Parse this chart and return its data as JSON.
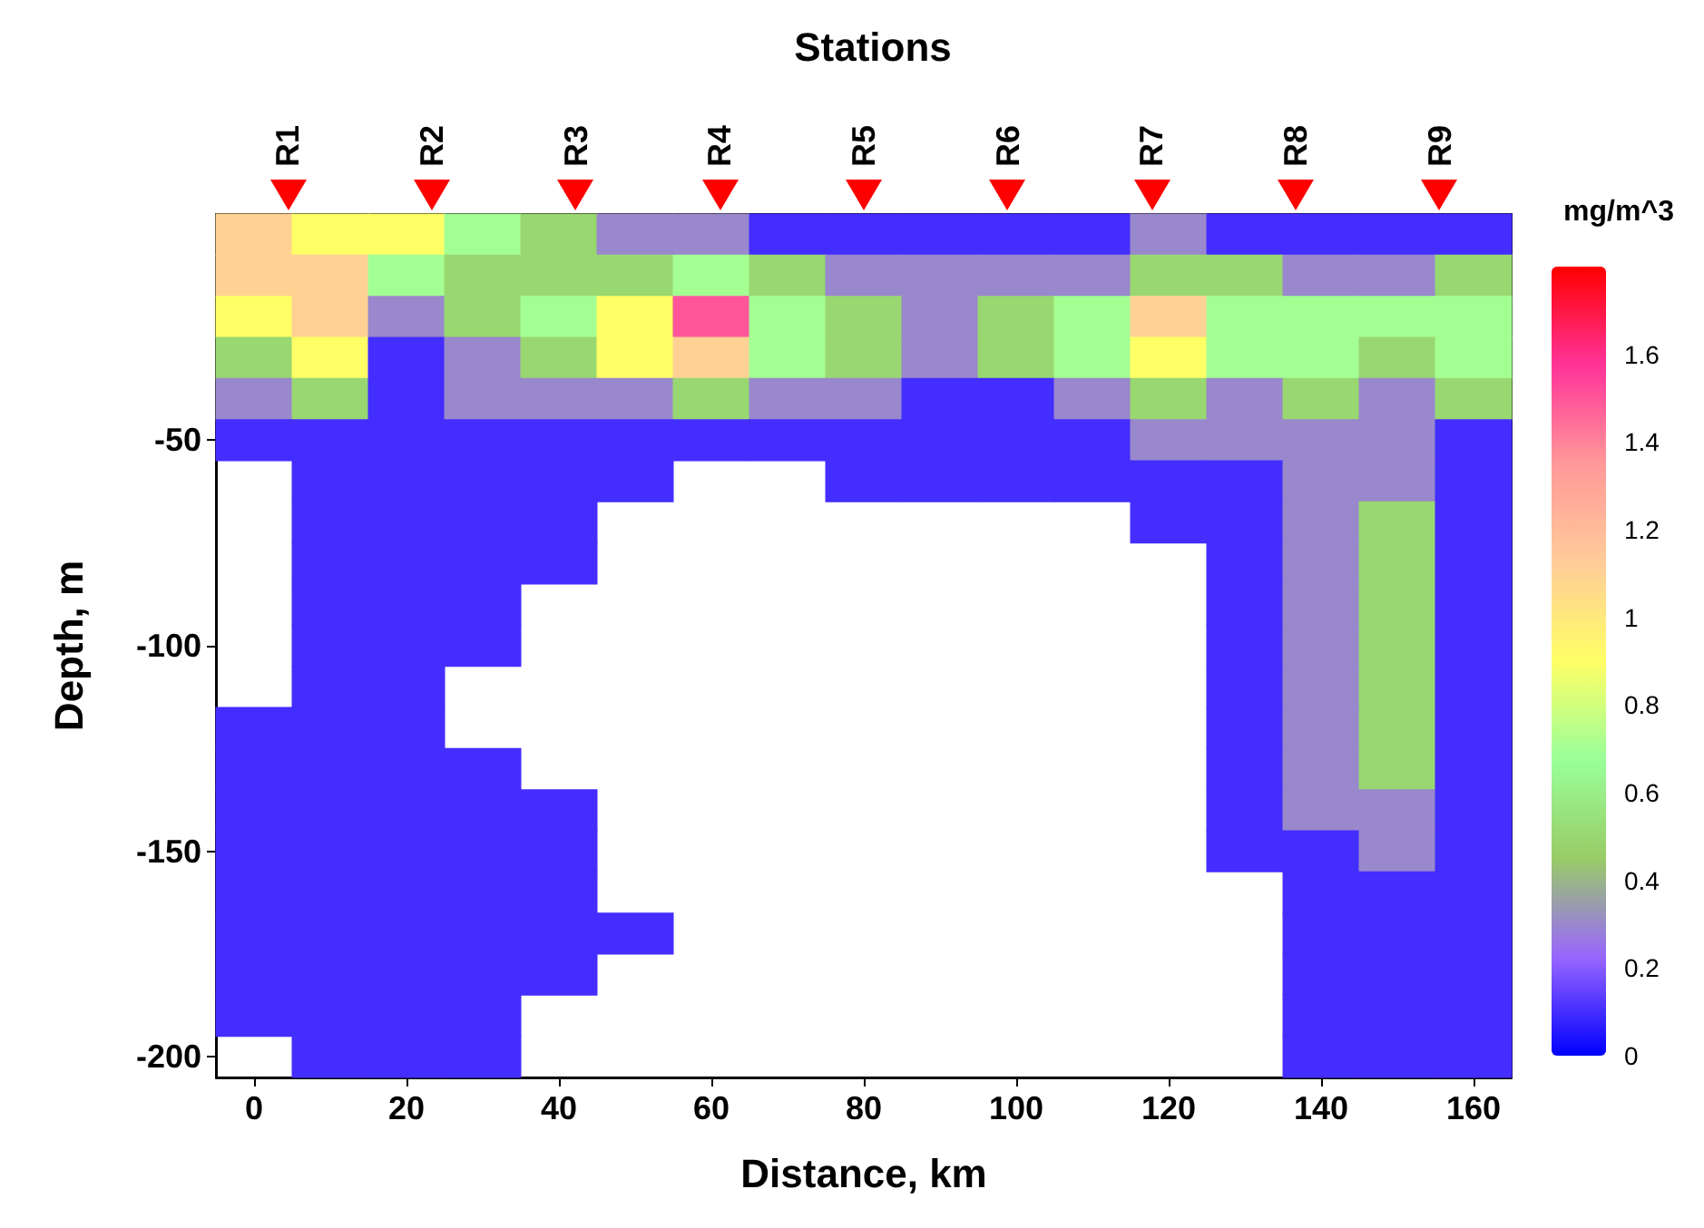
{
  "chart_data": {
    "type": "heatmap",
    "title": "Stations",
    "xlabel": "Distance, km",
    "ylabel": "Depth, m",
    "clabel": "mg/m^3",
    "categories": [
      "0",
      null,
      "20",
      null,
      "40",
      null,
      "60",
      null,
      "80",
      null,
      "100",
      null,
      "120",
      null,
      "140",
      null,
      "160"
    ],
    "y_categories": [
      null,
      null,
      null,
      null,
      null,
      "-50",
      null,
      null,
      null,
      null,
      "-100",
      null,
      null,
      null,
      null,
      "-150",
      null,
      null,
      null,
      null,
      "-200"
    ],
    "cells": [
      [
        1.1,
        0.9,
        0.9,
        0.7,
        0.5,
        0.3,
        0.3,
        0.1,
        0.1,
        0.1,
        0.1,
        0.1,
        0.3,
        0.1,
        0.1,
        0.1,
        0.1
      ],
      [
        1.1,
        1.1,
        0.7,
        0.5,
        0.5,
        0.5,
        0.7,
        0.5,
        0.3,
        0.3,
        0.3,
        0.3,
        0.5,
        0.5,
        0.3,
        0.3,
        0.5
      ],
      [
        0.9,
        1.1,
        0.3,
        0.5,
        0.7,
        0.9,
        1.5,
        0.7,
        0.5,
        0.3,
        0.5,
        0.7,
        1.1,
        0.7,
        0.7,
        0.7,
        0.7
      ],
      [
        0.5,
        0.9,
        0.1,
        0.3,
        0.5,
        0.9,
        1.1,
        0.7,
        0.5,
        0.3,
        0.5,
        0.7,
        0.9,
        0.7,
        0.7,
        0.5,
        0.7
      ],
      [
        0.3,
        0.5,
        0.1,
        0.3,
        0.3,
        0.3,
        0.5,
        0.3,
        0.3,
        0.1,
        0.1,
        0.3,
        0.5,
        0.3,
        0.5,
        0.3,
        0.5
      ],
      [
        0.1,
        0.1,
        0.1,
        0.1,
        0.1,
        0.1,
        0.1,
        0.1,
        0.1,
        0.1,
        0.1,
        0.1,
        0.3,
        0.3,
        0.3,
        0.3,
        0.1
      ],
      [
        null,
        0.1,
        0.1,
        0.1,
        0.1,
        0.1,
        null,
        null,
        0.1,
        0.1,
        0.1,
        0.1,
        0.1,
        0.1,
        0.3,
        0.3,
        0.1
      ],
      [
        null,
        0.1,
        0.1,
        0.1,
        0.1,
        null,
        null,
        null,
        null,
        null,
        null,
        null,
        0.1,
        0.1,
        0.3,
        0.5,
        0.1
      ],
      [
        null,
        0.1,
        0.1,
        0.1,
        0.1,
        null,
        null,
        null,
        null,
        null,
        null,
        null,
        null,
        0.1,
        0.3,
        0.5,
        0.1
      ],
      [
        null,
        0.1,
        0.1,
        0.1,
        null,
        null,
        null,
        null,
        null,
        null,
        null,
        null,
        null,
        0.1,
        0.3,
        0.5,
        0.1
      ],
      [
        null,
        0.1,
        0.1,
        0.1,
        null,
        null,
        null,
        null,
        null,
        null,
        null,
        null,
        null,
        0.1,
        0.3,
        0.5,
        0.1
      ],
      [
        null,
        0.1,
        0.1,
        null,
        null,
        null,
        null,
        null,
        null,
        null,
        null,
        null,
        null,
        0.1,
        0.3,
        0.5,
        0.1
      ],
      [
        0.1,
        0.1,
        0.1,
        null,
        null,
        null,
        null,
        null,
        null,
        null,
        null,
        null,
        null,
        0.1,
        0.3,
        0.5,
        0.1
      ],
      [
        0.1,
        0.1,
        0.1,
        0.1,
        null,
        null,
        null,
        null,
        null,
        null,
        null,
        null,
        null,
        0.1,
        0.3,
        0.5,
        0.1
      ],
      [
        0.1,
        0.1,
        0.1,
        0.1,
        0.1,
        null,
        null,
        null,
        null,
        null,
        null,
        null,
        null,
        0.1,
        0.3,
        0.3,
        0.1
      ],
      [
        0.1,
        0.1,
        0.1,
        0.1,
        0.1,
        null,
        null,
        null,
        null,
        null,
        null,
        null,
        null,
        0.1,
        0.1,
        0.3,
        0.1
      ],
      [
        0.1,
        0.1,
        0.1,
        0.1,
        0.1,
        null,
        null,
        null,
        null,
        null,
        null,
        null,
        null,
        null,
        0.1,
        0.1,
        0.1
      ],
      [
        0.1,
        0.1,
        0.1,
        0.1,
        0.1,
        0.1,
        null,
        null,
        null,
        null,
        null,
        null,
        null,
        null,
        0.1,
        0.1,
        0.1
      ],
      [
        0.1,
        0.1,
        0.1,
        0.1,
        0.1,
        null,
        null,
        null,
        null,
        null,
        null,
        null,
        null,
        null,
        0.1,
        0.1,
        0.1
      ],
      [
        0.1,
        0.1,
        0.1,
        0.1,
        null,
        null,
        null,
        null,
        null,
        null,
        null,
        null,
        null,
        null,
        0.1,
        0.1,
        0.1
      ],
      [
        null,
        0.1,
        0.1,
        0.1,
        null,
        null,
        null,
        null,
        null,
        null,
        null,
        null,
        null,
        null,
        0.1,
        0.1,
        0.1
      ]
    ],
    "clim": [
      0,
      1.8
    ],
    "cticks": [
      0,
      0.2,
      0.4,
      0.6,
      0.8,
      1,
      1.2,
      1.4,
      1.6
    ],
    "colors": [
      "#0000ff",
      "#9966ff",
      "#99cc66",
      "#99ff99",
      "#ffff66",
      "#ffcc99",
      "#ff9999",
      "#ff3399",
      "#ff0000"
    ],
    "annotations": [
      "R1",
      "R2",
      "R3",
      "R4",
      "R5",
      "R6",
      "R7",
      "R8",
      "R9"
    ]
  }
}
